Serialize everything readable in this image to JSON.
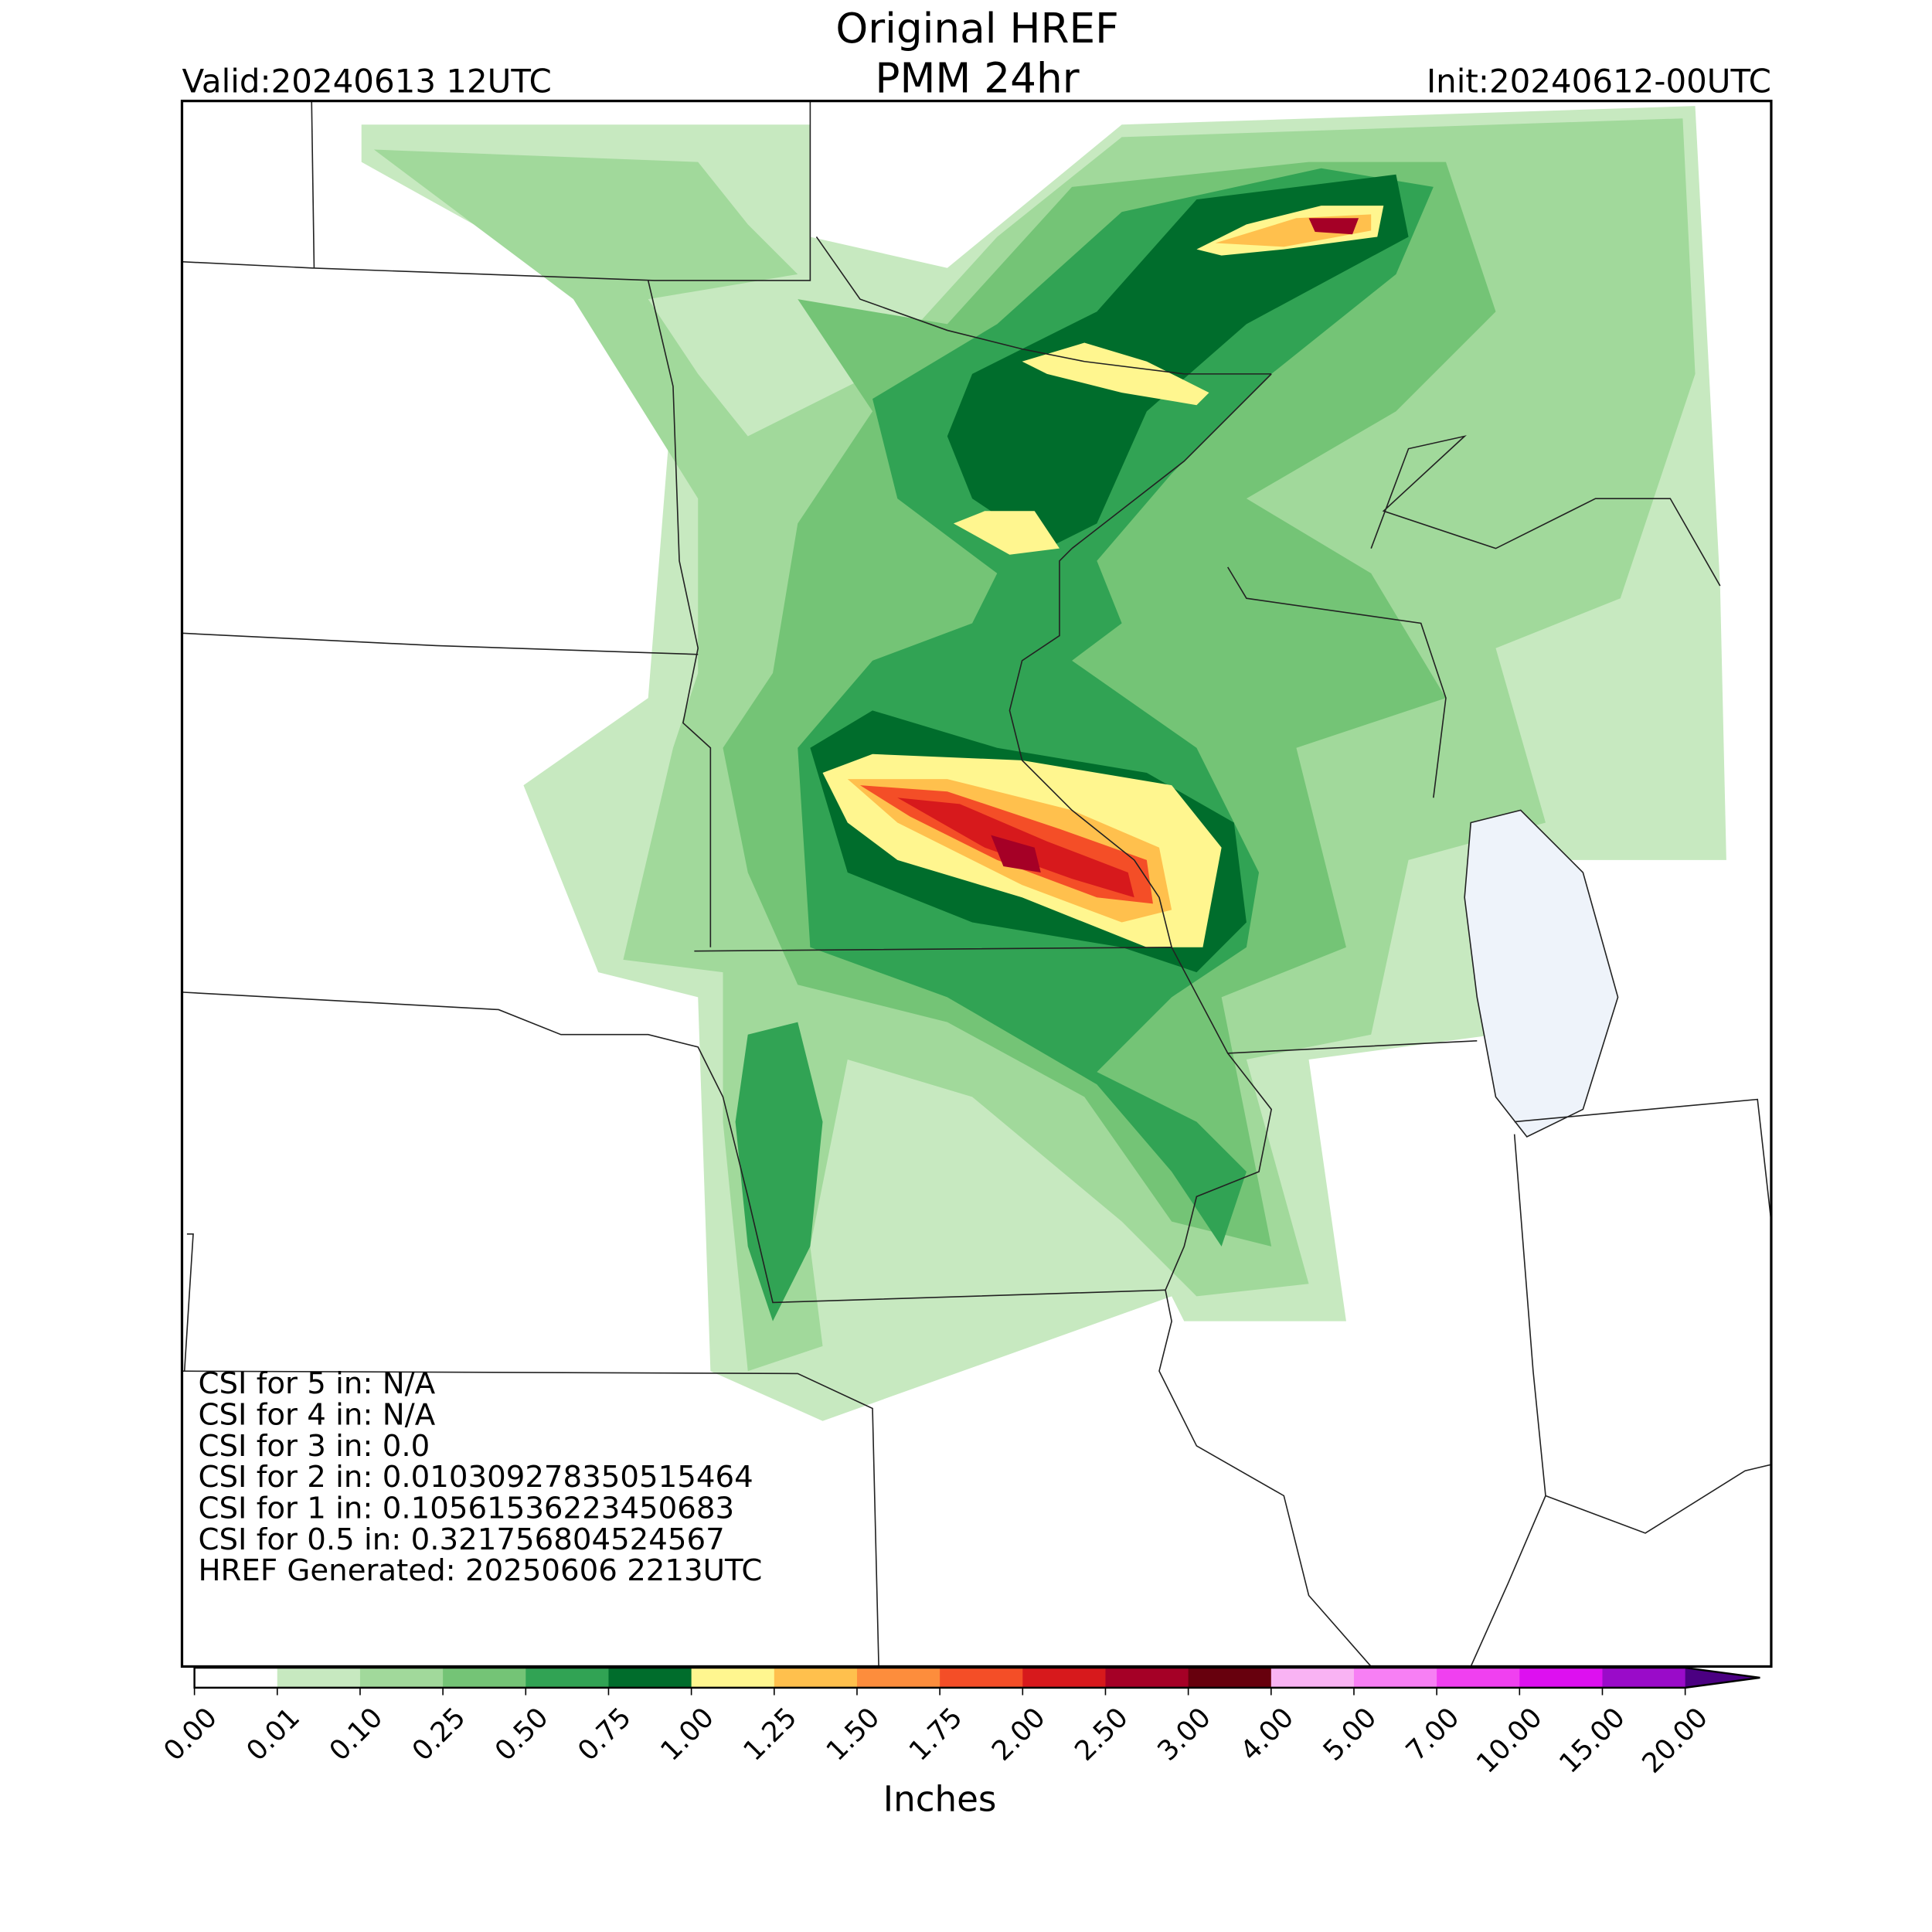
{
  "header": {
    "title": [
      "Original HREF",
      "PMM 24hr"
    ],
    "valid": "Valid:20240613 12UTC",
    "init": "Init:20240612-00UTC"
  },
  "stats": [
    "CSI for 5 in: N/A",
    "CSI for 4 in: N/A",
    "CSI for 3 in: 0.0",
    "CSI for 2 in: 0.010309278350515464",
    "CSI for 1 in: 0.10561536223450683",
    "CSI for 0.5 in: 0.321756804524567",
    "HREF Generated: 20250606 2213UTC"
  ],
  "colorbar": {
    "label": "Inches",
    "ticks": [
      {
        "value": 0,
        "label": "0.00"
      },
      {
        "value": 0.01,
        "label": "0.01"
      },
      {
        "value": 0.1,
        "label": "0.10"
      },
      {
        "value": 0.25,
        "label": "0.25"
      },
      {
        "value": 0.5,
        "label": "0.50"
      },
      {
        "value": 0.75,
        "label": "0.75"
      },
      {
        "value": 1,
        "label": "1.00"
      },
      {
        "value": 1.25,
        "label": "1.25"
      },
      {
        "value": 1.5,
        "label": "1.50"
      },
      {
        "value": 1.75,
        "label": "1.75"
      },
      {
        "value": 2,
        "label": "2.00"
      },
      {
        "value": 2.5,
        "label": "2.50"
      },
      {
        "value": 3,
        "label": "3.00"
      },
      {
        "value": 4,
        "label": "4.00"
      },
      {
        "value": 5,
        "label": "5.00"
      },
      {
        "value": 7,
        "label": "7.00"
      },
      {
        "value": 10,
        "label": "10.00"
      },
      {
        "value": 15,
        "label": "15.00"
      },
      {
        "value": 20,
        "label": "20.00"
      }
    ],
    "colors": [
      "#ffffff",
      "#c7e9c0",
      "#a1d99b",
      "#74c476",
      "#31a354",
      "#006d2c",
      "#fff68f",
      "#ffc04d",
      "#fd8d3c",
      "#f44e27",
      "#d7191c",
      "#a50026",
      "#67000d",
      "#f9b3f3",
      "#f77ff4",
      "#f040f0",
      "#dd10f0",
      "#9a0bc9"
    ],
    "extend_color": "#4b0082"
  }
}
